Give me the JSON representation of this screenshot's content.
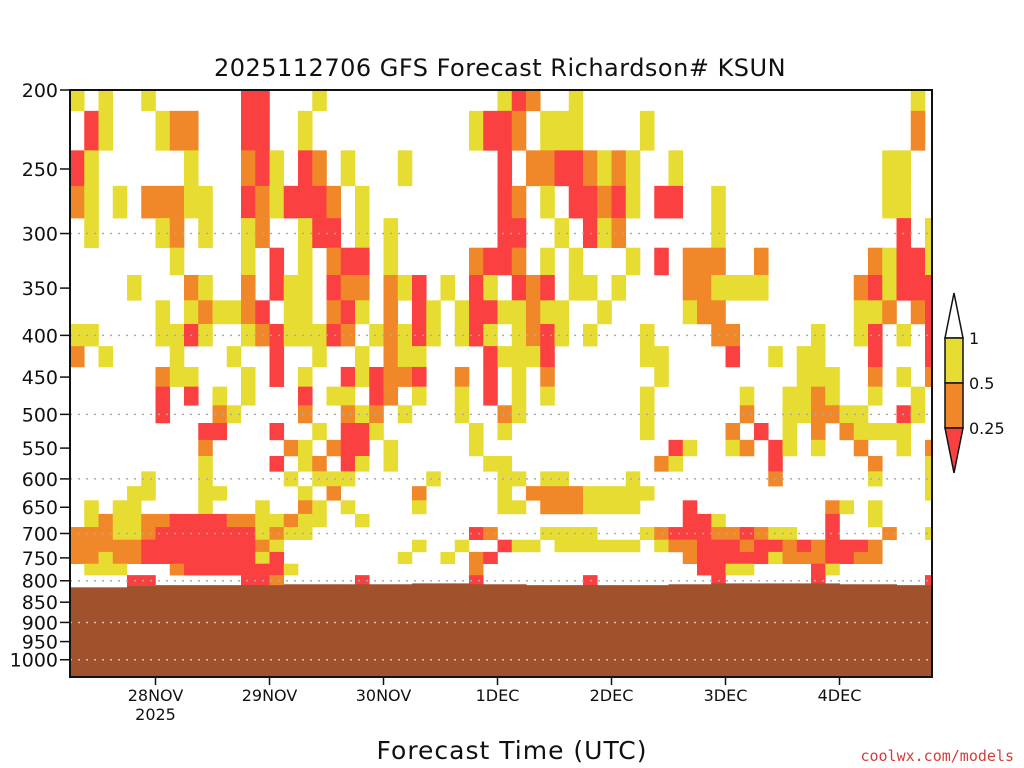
{
  "chart_data": {
    "type": "heatmap",
    "title": "2025112706 GFS Forecast Richardson# KSUN",
    "xlabel": "Forecast Time (UTC)",
    "ylabel": "",
    "credit": "coolwx.com/models",
    "start_time": "2025-11-27 06Z",
    "time_step_hours": 3,
    "x_ticks": [
      {
        "label": "28NOV",
        "sub": "2025",
        "hour": 18
      },
      {
        "label": "29NOV",
        "hour": 42
      },
      {
        "label": "30NOV",
        "hour": 66
      },
      {
        "label": "1DEC",
        "hour": 90
      },
      {
        "label": "2DEC",
        "hour": 114
      },
      {
        "label": "3DEC",
        "hour": 138
      },
      {
        "label": "4DEC",
        "hour": 162
      }
    ],
    "y_ticks": [
      200,
      250,
      300,
      350,
      400,
      450,
      500,
      550,
      600,
      650,
      700,
      750,
      800,
      850,
      900,
      950,
      1000
    ],
    "y_gridlines": [
      300,
      400,
      500,
      600,
      700,
      800,
      900,
      1000
    ],
    "ylim": [
      200,
      1050
    ],
    "y_scale": "log-pressure (hPa, inverted)",
    "legend": {
      "placement": "right",
      "bins": [
        {
          "label": "1",
          "color": "#ffffff",
          "range": "> 1"
        },
        {
          "label": "0.5",
          "color": "#e6dc32",
          "code": "Y",
          "range": "0.5 - 1"
        },
        {
          "label": "0.25",
          "color": "#f0882a",
          "code": "O",
          "range": "0.25 - 0.5"
        },
        {
          "color": "#fa4040",
          "code": "R",
          "range": "< 0.25"
        }
      ]
    },
    "colors": {
      "Y": "#e6dc32",
      "O": "#f0882a",
      "R": "#fa4040",
      "terrain": "#a0522d",
      "grid": "#aaaaaa"
    },
    "rows": [
      {
        "p": 200,
        "cells": "Y.Y..Y......RR...Y............YRO..Y.......................Y."
      },
      {
        "p": 225,
        "cells": ".RY...YOO...RR..Y...........YRRO.YYY....Y..................O."
      },
      {
        "p": 250,
        "cells": "RY......Y...ORY.RO.Y...Y......R.OORROYOY..Y..............YY.."
      },
      {
        "p": 275,
        "cells": "OY.Y.OOOYY..ROYRRRO.Y.........RO.Y.RRORY.RR..Y...........YY.."
      },
      {
        "p": 300,
        "cells": ".Y....YO.Y..YO..YRR.Y.Y.......RR..Y.RYO......Y............R.Y"
      },
      {
        "p": 325,
        "cells": ".......Y....Y.R.Y.ORR.Y.....ORRO.Y.Y...Y.R.OOO..O.......OYRRY"
      },
      {
        "p": 350,
        "cells": "....Y...OY..O.RYY.ROO.OYR.Y.RY.ROR.YY.Y....OOYYYY......ORYRRR"
      },
      {
        "p": 375,
        "cells": "......Y.YOYYOR.YY.ORY.O.RY.YRRYYOYY..Y.....YOO.........YYO.ORR"
      },
      {
        "p": 400,
        "cells": "YY....YYRY..YORYYYRO.YOYRY.YRY.YORY.Y...Y....OO.....Y..YR.Y.R"
      },
      {
        "p": 425,
        "cells": "O.Y....Y...Y..R..Y..Y.OYY....RYYYR......YY....R..Y.YY...R...R"
      },
      {
        "p": 450,
        "cells": "......OYY...Y.R.Y..RYROOR..O.R.Y.O.......Y.........YYY..O.Y.O"
      },
      {
        "p": 475,
        "cells": "......R.R.Y.Y...R.YY.RO.Y..Y.R.Y.Y......Y......Y..YYOY..Y..Y."
      },
      {
        "p": 500,
        "cells": "......R...OY....O..OYO.Y...Y..OY........Y......O..YYOOYY..RY."
      },
      {
        "p": 525,
        "cells": ".........RR...R..Y.RRY......Y.Y.........Y.....O.R.Y.O.OYYYY.."
      },
      {
        "p": 550,
        "cells": ".........O.....OY.ORR.Y.....Y.............RY..YO.RY.Y..O..Y.O."
      },
      {
        "p": 575,
        "cells": ".........Y....R.YO.RY.Y......YY..........OY......R......O...Y"
      },
      {
        "p": 600,
        "cells": ".....Y...Y.....Y.YYY.....Y....YY.YY....Y.........O......Y...Y"
      },
      {
        "p": 625,
        "cells": "....YY...YY.....Y.O.....O.....Y.OOOOYYYYY...................Y"
      },
      {
        "p": 650,
        "cells": ".Y.YY....Y...Y..OY.Y....Y.....YY.OOOYYYY...R.........OY.Y...."
      },
      {
        "p": 675,
        "cells": ".YOYYOORRRROOYYOYY..Y......................RRY.......R..Y...."
      },
      {
        "p": 700,
        "cells": "OOOYYORRRRRRRYOYY...........RO...YYYY...YORRROOROYY..R...O..Y"
      },
      {
        "p": 725,
        "cells": "OOOOORRRRRRRROY.........Y..Y..RYY.YYYYYY.YOORRRORRORORRRO....Y"
      },
      {
        "p": 750,
        "cells": "OOYOORRRRRRRRYR........Y..Y.OR.............ORRRRRYOOORROO....Y"
      },
      {
        "p": 775,
        "cells": ".YYY...ORRRRRRRY............O...............RRYY....RY......."
      },
      {
        "p": 800,
        "cells": "....RR......RRO.....R.......R.......R........R......R.......R"
      }
    ],
    "surface_pressure_hpa": [
      815,
      815,
      815,
      815,
      812,
      812,
      810,
      810,
      810,
      810,
      810,
      810,
      810,
      810,
      810,
      808,
      808,
      808,
      808,
      808,
      808,
      808,
      808,
      808,
      806,
      806,
      806,
      806,
      808,
      808,
      808,
      808,
      810,
      810,
      810,
      810,
      810,
      810,
      810,
      810,
      810,
      810,
      808,
      808,
      808,
      806,
      806,
      806,
      806,
      806,
      806,
      806,
      806,
      806,
      808,
      808,
      808,
      808,
      810,
      810,
      810
    ]
  }
}
